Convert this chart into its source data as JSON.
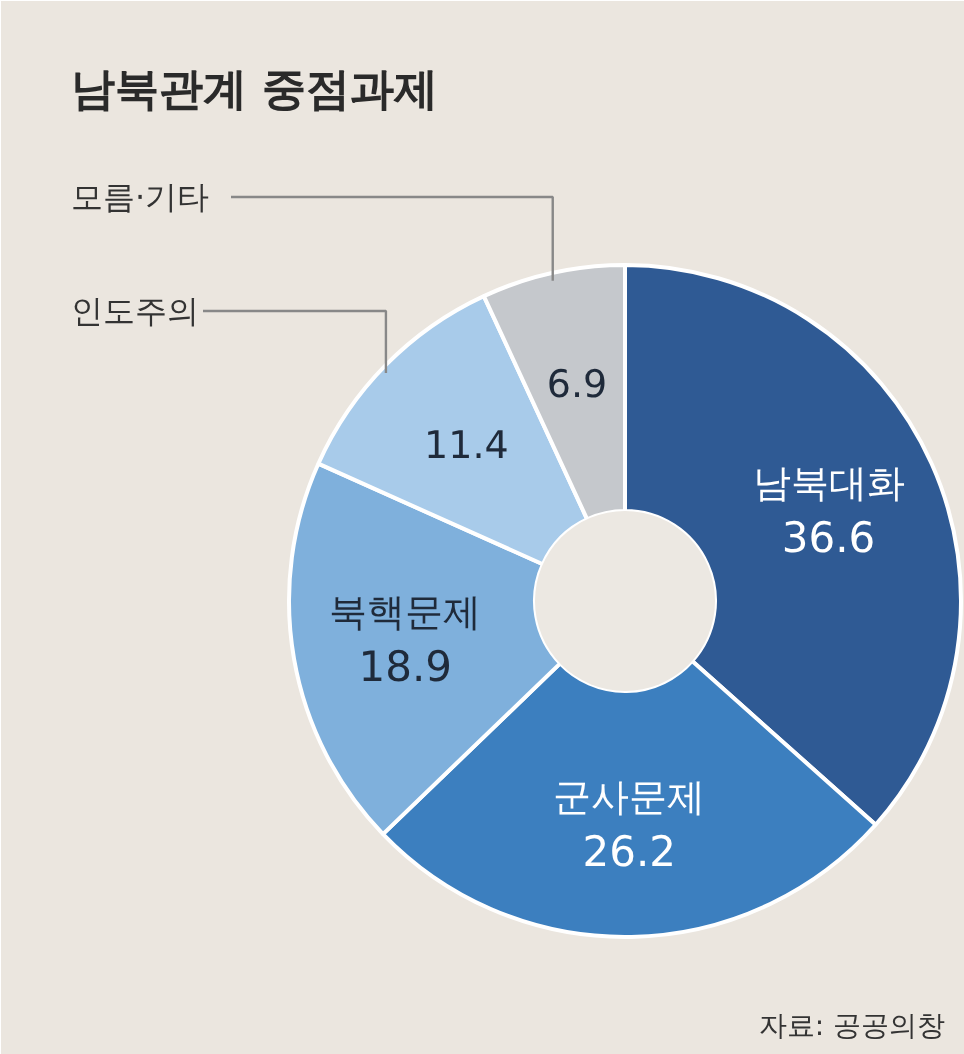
{
  "chart_data": {
    "type": "donut",
    "title": "남북관계 중점과제",
    "categories": [
      "남북대화",
      "군사문제",
      "북핵문제",
      "인도주의",
      "모름·기타"
    ],
    "values": [
      36.6,
      26.2,
      18.9,
      11.4,
      6.9
    ],
    "colors": [
      "#2f5a94",
      "#3c7fbf",
      "#7fb0dc",
      "#a8cbea",
      "#c5c8cc"
    ],
    "data_labels": true,
    "annotations": [
      "자료: 공공의창"
    ]
  }
}
